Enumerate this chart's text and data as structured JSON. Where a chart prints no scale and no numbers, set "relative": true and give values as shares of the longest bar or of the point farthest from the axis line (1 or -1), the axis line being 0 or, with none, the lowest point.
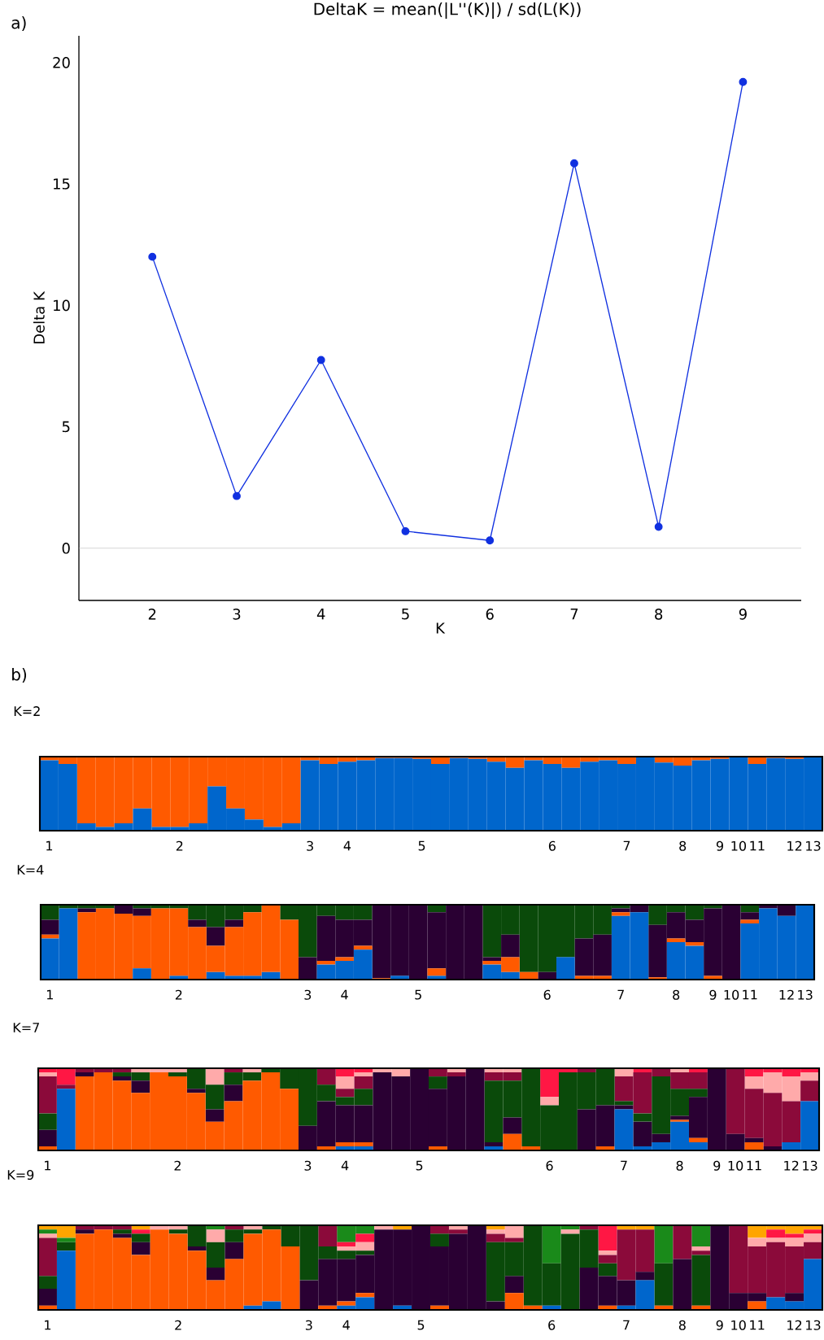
{
  "chart_data": [
    {
      "type": "line",
      "title": "DeltaK = mean(|L''(K)|) / sd(L(K))",
      "xlabel": "K",
      "ylabel": "Delta K",
      "annotations": [
        "a)"
      ],
      "x": [
        2,
        3,
        4,
        5,
        6,
        7,
        8,
        9
      ],
      "values": [
        12.0,
        2.15,
        7.75,
        0.7,
        0.32,
        15.85,
        0.88,
        19.2
      ],
      "color": "#1030e0",
      "marker": "circle",
      "xlim": [
        1.13,
        9.69
      ],
      "ylim": [
        -2.15,
        21.1
      ],
      "xticks": [
        2,
        3,
        4,
        5,
        6,
        7,
        8,
        9
      ],
      "yticks": [
        0,
        5,
        10,
        15,
        20
      ],
      "ref_lines": [
        {
          "axis": "y",
          "value": 0,
          "color": "#b0b0b0"
        }
      ]
    },
    {
      "type": "bar",
      "stacked": true,
      "relative": true,
      "title": "K=2",
      "annotations": [
        "b)"
      ],
      "categories": [
        "1",
        null,
        null,
        null,
        null,
        null,
        null,
        "2",
        null,
        null,
        null,
        null,
        null,
        null,
        "3",
        null,
        "4",
        null,
        null,
        null,
        "5",
        null,
        null,
        null,
        null,
        null,
        null,
        "6",
        null,
        null,
        null,
        "7",
        null,
        null,
        "8",
        null,
        "9",
        "10",
        "11",
        null,
        "12",
        "13"
      ],
      "series": [
        {
          "color": "#0066cc",
          "values": [
            0.95,
            0.9,
            0.1,
            0.05,
            0.1,
            0.3,
            0.05,
            0.05,
            0.1,
            0.6,
            0.3,
            0.15,
            0.05,
            0.1,
            0.95,
            0.9,
            0.93,
            0.95,
            0.98,
            0.98,
            0.97,
            0.9,
            0.98,
            0.97,
            0.93,
            0.85,
            0.95,
            0.9,
            0.85,
            0.93,
            0.95,
            0.9,
            1.0,
            0.92,
            0.88,
            0.95,
            0.97,
            1.0,
            0.9,
            0.98,
            0.97,
            1.0
          ]
        },
        {
          "color": "#ff5a00",
          "values": [
            0.05,
            0.1,
            0.9,
            0.95,
            0.9,
            0.7,
            0.95,
            0.95,
            0.9,
            0.4,
            0.7,
            0.85,
            0.95,
            0.9,
            0.05,
            0.1,
            0.07,
            0.05,
            0.02,
            0.02,
            0.03,
            0.1,
            0.02,
            0.03,
            0.07,
            0.15,
            0.05,
            0.1,
            0.15,
            0.07,
            0.05,
            0.1,
            0,
            0.08,
            0.12,
            0.05,
            0.03,
            0,
            0.1,
            0.02,
            0.03,
            0
          ]
        }
      ]
    },
    {
      "type": "bar",
      "stacked": true,
      "relative": true,
      "title": "K=4",
      "categories": [
        "1",
        null,
        null,
        null,
        null,
        null,
        null,
        "2",
        null,
        null,
        null,
        null,
        null,
        null,
        "3",
        null,
        "4",
        null,
        null,
        null,
        "5",
        null,
        null,
        null,
        null,
        null,
        null,
        "6",
        null,
        null,
        null,
        "7",
        null,
        null,
        "8",
        null,
        "9",
        "10",
        "11",
        null,
        "12",
        "13"
      ],
      "series": [
        {
          "color": "#0066cc",
          "values": [
            0.55,
            0.95,
            0,
            0,
            0,
            0.15,
            0,
            0.05,
            0,
            0.1,
            0.05,
            0.05,
            0.1,
            0,
            0,
            0.2,
            0.25,
            0.4,
            0,
            0.05,
            0,
            0.05,
            0,
            0,
            0.2,
            0.1,
            0,
            0,
            0.3,
            0,
            0,
            0.85,
            0.9,
            0,
            0.5,
            0.45,
            0,
            0,
            0.75,
            0.95,
            0.85,
            1
          ]
        },
        {
          "color": "#ff5a00",
          "values": [
            0.05,
            0,
            0.9,
            0.95,
            0.88,
            0.7,
            0.95,
            0.9,
            0.7,
            0.35,
            0.65,
            0.85,
            0.9,
            0.8,
            0,
            0.05,
            0.05,
            0.05,
            0.02,
            0,
            0,
            0.1,
            0,
            0,
            0.05,
            0.2,
            0.1,
            0,
            0,
            0.05,
            0.05,
            0.05,
            0,
            0.03,
            0.05,
            0.05,
            0.05,
            0,
            0.05,
            0,
            0,
            0
          ]
        },
        {
          "color": "#2a0033",
          "values": [
            0.2,
            0,
            0.05,
            0,
            0.12,
            0.1,
            0,
            0,
            0.1,
            0.25,
            0.1,
            0,
            0,
            0,
            0.3,
            0.6,
            0.5,
            0.35,
            0.98,
            0.95,
            1,
            0.75,
            1,
            1,
            0.05,
            0.3,
            0,
            0.1,
            0,
            0.5,
            0.55,
            0.05,
            0.1,
            0.7,
            0.35,
            0.3,
            0.9,
            1,
            0.1,
            0.05,
            0.15,
            0
          ]
        },
        {
          "color": "#0a4a0a",
          "values": [
            0.2,
            0.05,
            0.05,
            0.05,
            0,
            0.05,
            0.05,
            0.05,
            0.2,
            0.3,
            0.2,
            0.1,
            0,
            0.2,
            0.7,
            0.15,
            0.2,
            0.2,
            0,
            0,
            0,
            0.1,
            0,
            0,
            0.7,
            0.4,
            0.9,
            0.9,
            0.7,
            0.45,
            0.4,
            0.05,
            0,
            0.27,
            0.1,
            0.2,
            0.05,
            0,
            0.1,
            0,
            0,
            0
          ]
        }
      ]
    },
    {
      "type": "bar",
      "stacked": true,
      "relative": true,
      "title": "K=7",
      "categories": [
        "1",
        null,
        null,
        null,
        null,
        null,
        null,
        "2",
        null,
        null,
        null,
        null,
        null,
        null,
        "3",
        null,
        "4",
        null,
        null,
        null,
        "5",
        null,
        null,
        null,
        null,
        null,
        null,
        "6",
        null,
        null,
        null,
        "7",
        null,
        null,
        "8",
        null,
        "9",
        "10",
        "11",
        null,
        "12",
        "13"
      ],
      "series": [
        {
          "color": "#0066cc",
          "values": [
            0,
            0.75,
            0,
            0,
            0,
            0,
            0,
            0,
            0,
            0,
            0,
            0,
            0,
            0,
            0,
            0,
            0.05,
            0.05,
            0,
            0,
            0,
            0,
            0,
            0,
            0.05,
            0,
            0,
            0,
            0,
            0,
            0,
            0.5,
            0.05,
            0.1,
            0.35,
            0.1,
            0,
            0,
            0,
            0,
            0.1,
            0.6
          ]
        },
        {
          "color": "#ff5a00",
          "values": [
            0.05,
            0,
            0.9,
            0.95,
            0.85,
            0.7,
            0.95,
            0.9,
            0.7,
            0.35,
            0.6,
            0.85,
            0.95,
            0.75,
            0,
            0.05,
            0.05,
            0.05,
            0,
            0,
            0,
            0.05,
            0,
            0,
            0,
            0.2,
            0.05,
            0,
            0,
            0,
            0.05,
            0,
            0,
            0,
            0.02,
            0.05,
            0,
            0,
            0.1,
            0,
            0,
            0
          ]
        },
        {
          "color": "#2a0033",
          "values": [
            0.2,
            0,
            0.05,
            0,
            0.05,
            0.15,
            0,
            0,
            0.05,
            0.15,
            0.2,
            0,
            0,
            0,
            0.3,
            0.55,
            0.45,
            0.45,
            0.95,
            0.9,
            1,
            0.7,
            0.9,
            1,
            0.05,
            0.2,
            0,
            0,
            0,
            0.5,
            0.5,
            0.05,
            0.3,
            0.1,
            0.05,
            0.5,
            1,
            0.2,
            0.05,
            0.05,
            0,
            0
          ]
        },
        {
          "color": "#0a4a0a",
          "values": [
            0.2,
            0,
            0,
            0,
            0.05,
            0.1,
            0,
            0.05,
            0.25,
            0.3,
            0.15,
            0.1,
            0.05,
            0.25,
            0.7,
            0.2,
            0.1,
            0.2,
            0,
            0,
            0,
            0.15,
            0,
            0,
            0.75,
            0.45,
            0.95,
            0.55,
            0.95,
            0.45,
            0.45,
            0.05,
            0.1,
            0.7,
            0.33,
            0.1,
            0,
            0,
            0,
            0,
            0,
            0
          ]
        },
        {
          "color": "#8b0a3a",
          "values": [
            0.45,
            0.05,
            0.05,
            0.05,
            0.05,
            0,
            0,
            0,
            0,
            0,
            0.05,
            0,
            0,
            0,
            0,
            0.2,
            0.1,
            0.15,
            0,
            0,
            0,
            0.1,
            0.05,
            0,
            0.1,
            0.1,
            0,
            0,
            0,
            0.05,
            0,
            0.3,
            0.5,
            0.1,
            0.2,
            0.2,
            0,
            0.8,
            0.6,
            0.65,
            0.5,
            0.25
          ]
        },
        {
          "color": "#ffaaaa",
          "values": [
            0.05,
            0,
            0,
            0,
            0,
            0.05,
            0.05,
            0.05,
            0,
            0.2,
            0,
            0.05,
            0,
            0,
            0,
            0,
            0.15,
            0.05,
            0.05,
            0.1,
            0,
            0,
            0.05,
            0,
            0.05,
            0.05,
            0,
            0.1,
            0,
            0,
            0,
            0.1,
            0,
            0,
            0.05,
            0,
            0,
            0,
            0.15,
            0.25,
            0.3,
            0.1
          ]
        },
        {
          "color": "#ff1744",
          "values": [
            0.05,
            0.2,
            0,
            0,
            0,
            0,
            0,
            0,
            0,
            0,
            0,
            0,
            0,
            0,
            0,
            0,
            0.1,
            0.05,
            0,
            0,
            0,
            0,
            0,
            0,
            0,
            0,
            0,
            0.35,
            0.05,
            0,
            0,
            0,
            0.05,
            0,
            0,
            0.05,
            0,
            0,
            0.1,
            0.05,
            0.1,
            0.05
          ]
        }
      ]
    },
    {
      "type": "bar",
      "stacked": true,
      "relative": true,
      "title": "K=9",
      "categories": [
        "1",
        null,
        null,
        null,
        null,
        null,
        null,
        "2",
        null,
        null,
        null,
        null,
        null,
        null,
        "3",
        null,
        "4",
        null,
        null,
        null,
        "5",
        null,
        null,
        null,
        null,
        null,
        null,
        "6",
        null,
        null,
        null,
        "7",
        null,
        null,
        "8",
        null,
        "9",
        "10",
        "11",
        null,
        "12",
        "13"
      ],
      "series": [
        {
          "color": "#0066cc",
          "values": [
            0,
            0.7,
            0,
            0,
            0,
            0,
            0,
            0,
            0,
            0,
            0,
            0.05,
            0.1,
            0,
            0,
            0,
            0.05,
            0.15,
            0,
            0.05,
            0,
            0,
            0,
            0,
            0,
            0,
            0,
            0.05,
            0,
            0,
            0,
            0.05,
            0.35,
            0,
            0,
            0,
            0,
            0,
            0,
            0.15,
            0.1,
            0.6
          ]
        },
        {
          "color": "#ff5a00",
          "values": [
            0.05,
            0,
            0.9,
            0.95,
            0.85,
            0.65,
            0.95,
            0.9,
            0.7,
            0.35,
            0.6,
            0.85,
            0.85,
            0.75,
            0,
            0.05,
            0.05,
            0.05,
            0,
            0,
            0,
            0.05,
            0,
            0,
            0,
            0.2,
            0.05,
            0,
            0,
            0,
            0.05,
            0,
            0,
            0.05,
            0,
            0.05,
            0,
            0,
            0.1,
            0,
            0,
            0
          ]
        },
        {
          "color": "#2a0033",
          "values": [
            0.2,
            0,
            0.05,
            0,
            0.05,
            0.15,
            0,
            0,
            0.05,
            0.15,
            0.2,
            0,
            0,
            0,
            0.35,
            0.55,
            0.5,
            0.45,
            0.95,
            0.9,
            1,
            0.7,
            0.9,
            1,
            0.1,
            0.2,
            0,
            0,
            0,
            0.5,
            0.35,
            0.3,
            0.1,
            0,
            0.6,
            0,
            1,
            0.2,
            0.1,
            0,
            0.1,
            0
          ]
        },
        {
          "color": "#0a4a0a",
          "values": [
            0.15,
            0.1,
            0,
            0,
            0.05,
            0.1,
            0,
            0.05,
            0.25,
            0.3,
            0.15,
            0.05,
            0.05,
            0.25,
            0.65,
            0.15,
            0.1,
            0.05,
            0,
            0,
            0,
            0.15,
            0,
            0,
            0.7,
            0.4,
            0.95,
            0.5,
            0.9,
            0.45,
            0.15,
            0,
            0,
            0.5,
            0,
            0.6,
            0,
            0,
            0,
            0,
            0,
            0
          ]
        },
        {
          "color": "#8b0a3a",
          "values": [
            0.45,
            0,
            0.05,
            0.05,
            0.05,
            0,
            0,
            0,
            0,
            0,
            0.05,
            0,
            0,
            0,
            0,
            0.25,
            0,
            0,
            0,
            0,
            0,
            0.1,
            0.05,
            0,
            0.1,
            0.05,
            0,
            0,
            0,
            0.05,
            0.1,
            0.6,
            0.5,
            0,
            0.4,
            0.05,
            0,
            0.8,
            0.55,
            0.65,
            0.55,
            0.2
          ]
        },
        {
          "color": "#ffaaaa",
          "values": [
            0.05,
            0,
            0,
            0,
            0,
            0,
            0.05,
            0.05,
            0,
            0.15,
            0,
            0.05,
            0,
            0,
            0,
            0,
            0.05,
            0.1,
            0.05,
            0,
            0,
            0,
            0.05,
            0,
            0.05,
            0.15,
            0,
            0,
            0.05,
            0,
            0.05,
            0,
            0,
            0,
            0,
            0.05,
            0,
            0,
            0.1,
            0.05,
            0.1,
            0.1
          ]
        },
        {
          "color": "#ff1744",
          "values": [
            0,
            0,
            0,
            0,
            0,
            0.05,
            0,
            0,
            0,
            0,
            0,
            0,
            0,
            0,
            0,
            0,
            0.05,
            0.1,
            0,
            0,
            0,
            0,
            0,
            0,
            0,
            0,
            0,
            0,
            0,
            0,
            0.3,
            0,
            0,
            0,
            0,
            0,
            0,
            0,
            0,
            0.1,
            0.05,
            0.05
          ]
        },
        {
          "color": "#1a8a1a",
          "values": [
            0.05,
            0.05,
            0,
            0,
            0,
            0,
            0,
            0,
            0,
            0.05,
            0,
            0,
            0,
            0,
            0,
            0,
            0.2,
            0.1,
            0,
            0,
            0,
            0,
            0,
            0,
            0,
            0,
            0,
            0.45,
            0.05,
            0,
            0,
            0,
            0,
            0.45,
            0,
            0.25,
            0,
            0,
            0,
            0,
            0,
            0
          ]
        },
        {
          "color": "#ffa500",
          "values": [
            0.05,
            0.15,
            0,
            0,
            0,
            0.05,
            0,
            0,
            0,
            0,
            0,
            0,
            0,
            0,
            0,
            0,
            0,
            0,
            0,
            0.05,
            0,
            0,
            0,
            0,
            0.05,
            0,
            0,
            0,
            0,
            0,
            0,
            0.05,
            0.05,
            0,
            0,
            0,
            0,
            0,
            0.15,
            0.05,
            0.1,
            0.05
          ]
        }
      ]
    }
  ]
}
